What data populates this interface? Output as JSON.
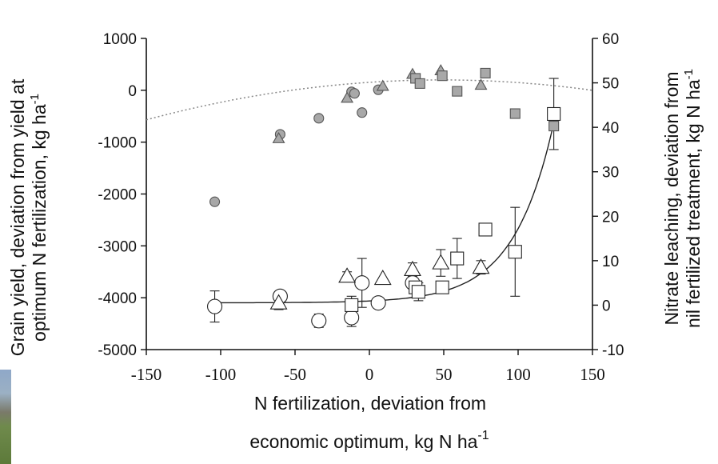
{
  "chart_data": {
    "type": "scatter",
    "x_axis": {
      "label_line1": "N fertilization, deviation from",
      "label_line2": "economic optimum, kg N ha",
      "label_sup": "-1",
      "range": [
        -150,
        150
      ],
      "ticks": [
        "-150",
        "-100",
        "-50",
        "0",
        "50",
        "100",
        "150"
      ],
      "tick_values": [
        -150,
        -100,
        -50,
        0,
        50,
        100,
        150
      ]
    },
    "y_left_axis": {
      "label_line1": "Grain yield, deviation from yield at",
      "label_line2": "optimum N fertilization, kg ha",
      "label_sup": "-1",
      "range": [
        -5000,
        1000
      ],
      "ticks": [
        "1000",
        "0",
        "-1000",
        "-2000",
        "-3000",
        "-4000",
        "-5000"
      ],
      "tick_values": [
        1000,
        0,
        -1000,
        -2000,
        -3000,
        -4000,
        -5000
      ]
    },
    "y_right_axis": {
      "label_line1": "Nitrate leaching, deviation from",
      "label_line2": "nil fertilized treatment, kg N ha",
      "label_sup": "-1",
      "range": [
        -10,
        60
      ],
      "ticks": [
        "60",
        "50",
        "40",
        "30",
        "20",
        "10",
        "0",
        "-10"
      ],
      "tick_values": [
        60,
        50,
        40,
        30,
        20,
        10,
        0,
        -10
      ]
    },
    "yield_series": {
      "circles": [
        [
          -104,
          -2150
        ],
        [
          -60,
          -850
        ],
        [
          -34,
          -540
        ],
        [
          -12,
          -30
        ],
        [
          -10,
          -60
        ],
        [
          -5,
          -430
        ],
        [
          6,
          10
        ]
      ],
      "triangles": [
        [
          -61,
          -930
        ],
        [
          -15,
          -150
        ],
        [
          9,
          80
        ],
        [
          29,
          310
        ],
        [
          48,
          380
        ],
        [
          75,
          100
        ]
      ],
      "squares": [
        [
          31,
          230
        ],
        [
          34,
          130
        ],
        [
          49,
          280
        ],
        [
          59,
          -20
        ],
        [
          78,
          330
        ],
        [
          98,
          -450
        ],
        [
          124,
          -690
        ]
      ]
    },
    "leaching_series": {
      "circles": [
        [
          -104,
          -0.3,
          3.5
        ],
        [
          -60,
          2.0,
          null
        ],
        [
          -34,
          -3.5,
          1.5
        ],
        [
          -12,
          -2.8,
          2.0
        ],
        [
          -5,
          5.0,
          5.5
        ],
        [
          6,
          0.5,
          null
        ],
        [
          29,
          5.0,
          null
        ]
      ],
      "triangles": [
        [
          -61,
          0.5,
          1.5
        ],
        [
          -15,
          6.5,
          1.0
        ],
        [
          9,
          6.0,
          null
        ],
        [
          29,
          8.0,
          1.5
        ],
        [
          48,
          9.5,
          3.0
        ],
        [
          75,
          8.5,
          1.5
        ]
      ],
      "squares": [
        [
          -12,
          0.0,
          2.0
        ],
        [
          31,
          4.0,
          null
        ],
        [
          33,
          3.0,
          2.0
        ],
        [
          49,
          4.0,
          null
        ],
        [
          59,
          10.5,
          4.5
        ],
        [
          78,
          17.0,
          1.0
        ],
        [
          98,
          12.0,
          10.0
        ],
        [
          124,
          43.0,
          8.0
        ]
      ]
    },
    "yield_curve": {
      "style": "dotted",
      "model": "quadratic",
      "coefficients": [
        153,
        1.9,
        -0.0195
      ],
      "x_range": [
        -150,
        150
      ]
    },
    "leaching_curve": {
      "style": "solid",
      "model": "exponential",
      "coefficients": [
        0.53,
        1.25,
        0.037
      ],
      "x_range": [
        -104,
        124
      ]
    },
    "grid": false,
    "legend": "none"
  }
}
